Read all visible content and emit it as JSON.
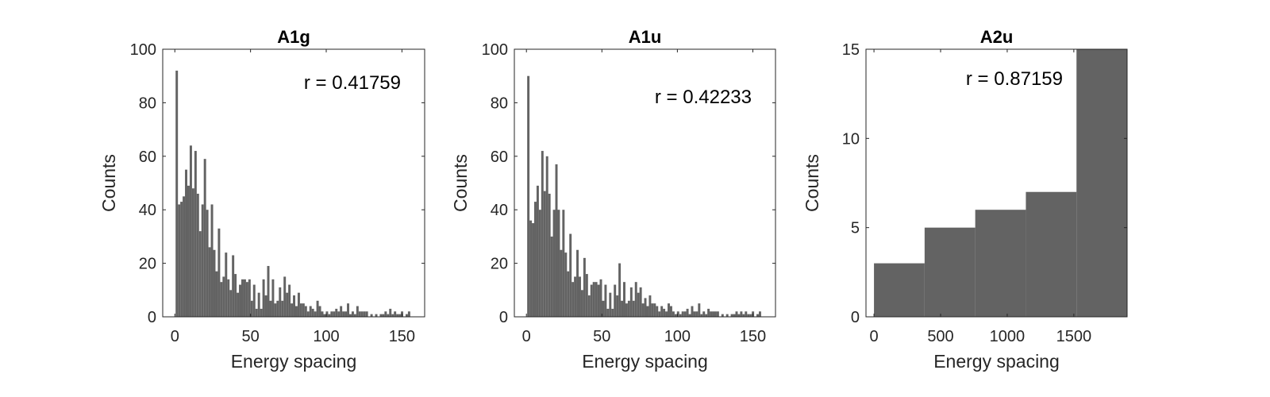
{
  "chart_data": [
    {
      "type": "bar",
      "title": "A1g",
      "xlabel": "Energy spacing",
      "ylabel": "Counts",
      "annotation": "r = 0.41759",
      "xlim": [
        -8,
        165
      ],
      "ylim": [
        0,
        100
      ],
      "xticks": [
        0,
        50,
        100,
        150
      ],
      "yticks": [
        0,
        20,
        40,
        60,
        80,
        100
      ],
      "bin_start": 0.5,
      "bin_width": 1.55,
      "values": [
        92,
        42,
        43,
        45,
        55,
        49,
        64,
        48,
        62,
        46,
        32,
        42,
        59,
        40,
        26,
        42,
        25,
        17,
        33,
        13,
        15,
        24,
        14,
        10,
        23,
        16,
        9,
        12,
        14,
        14,
        13,
        14,
        6,
        12,
        3,
        9,
        3,
        14,
        8,
        19,
        6,
        14,
        5,
        6,
        11,
        6,
        15,
        9,
        12,
        5,
        8,
        4,
        9,
        5,
        5,
        4,
        2,
        4,
        3,
        2,
        6,
        4,
        2,
        1,
        2,
        1,
        2,
        2,
        3,
        2,
        4,
        2,
        2,
        5,
        1,
        2,
        1,
        4,
        2,
        2,
        2,
        2,
        0,
        1,
        0,
        1,
        0,
        1,
        1,
        2,
        1,
        3,
        1,
        2,
        1,
        1,
        2,
        0,
        1,
        2
      ]
    },
    {
      "type": "bar",
      "title": "A1u",
      "xlabel": "Energy spacing",
      "ylabel": "Counts",
      "annotation": "r = 0.42233",
      "xlim": [
        -8,
        165
      ],
      "ylim": [
        0,
        100
      ],
      "xticks": [
        0,
        50,
        100,
        150
      ],
      "yticks": [
        0,
        20,
        40,
        60,
        80,
        100
      ],
      "bin_start": 0.5,
      "bin_width": 1.55,
      "values": [
        90,
        36,
        35,
        43,
        49,
        40,
        62,
        47,
        60,
        46,
        30,
        40,
        57,
        40,
        25,
        40,
        24,
        17,
        31,
        13,
        15,
        25,
        15,
        10,
        22,
        16,
        8,
        12,
        13,
        13,
        12,
        14,
        6,
        12,
        3,
        9,
        3,
        12,
        8,
        20,
        6,
        13,
        5,
        6,
        11,
        6,
        13,
        9,
        11,
        5,
        7,
        4,
        8,
        5,
        5,
        4,
        2,
        4,
        3,
        2,
        5,
        4,
        2,
        1,
        2,
        1,
        2,
        2,
        3,
        1,
        4,
        2,
        2,
        5,
        1,
        2,
        1,
        3,
        2,
        2,
        2,
        2,
        0,
        1,
        0,
        1,
        0,
        1,
        1,
        2,
        1,
        2,
        1,
        2,
        1,
        1,
        2,
        0,
        1,
        2
      ]
    },
    {
      "type": "bar",
      "title": "A2u",
      "xlabel": "Energy spacing",
      "ylabel": "Counts",
      "annotation": "r = 0.87159",
      "xlim": [
        -60,
        1900
      ],
      "ylim": [
        0,
        15
      ],
      "xticks": [
        0,
        500,
        1000,
        1500
      ],
      "yticks": [
        0,
        5,
        10,
        15
      ],
      "bin_start": 0,
      "bin_width": 380,
      "values": [
        3,
        5,
        6,
        7,
        15
      ]
    }
  ]
}
